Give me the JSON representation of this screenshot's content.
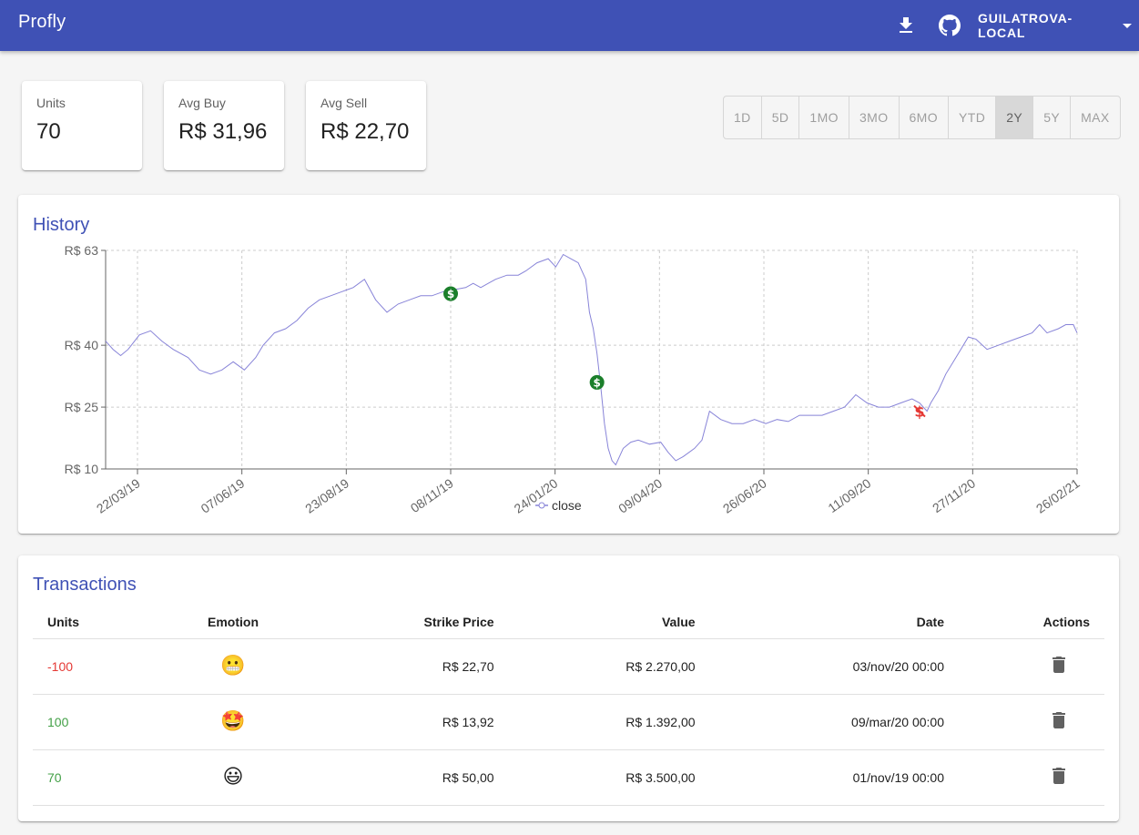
{
  "app": {
    "title": "Profly",
    "user": "GUILATROVA-LOCAL"
  },
  "icons": {
    "download": "download-icon",
    "github": "github-icon",
    "menu_caret": "chevron-down-icon",
    "buy_marker": "dollar-circle-icon",
    "sell_marker": "dollar-strike-icon",
    "delete": "trash-icon"
  },
  "stats": [
    {
      "label": "Units",
      "value": "70"
    },
    {
      "label": "Avg Buy",
      "value": "R$ 31,96"
    },
    {
      "label": "Avg Sell",
      "value": "R$ 22,70"
    }
  ],
  "ranges": {
    "options": [
      "1D",
      "5D",
      "1MO",
      "3MO",
      "6MO",
      "YTD",
      "2Y",
      "5Y",
      "MAX"
    ],
    "selected": "2Y"
  },
  "history": {
    "title": "History",
    "chart_data": {
      "type": "line",
      "y_ticks": [
        "R$ 63",
        "R$ 40",
        "R$ 25",
        "R$ 10"
      ],
      "y_tick_values": [
        63,
        40,
        25,
        10
      ],
      "ylim": [
        10,
        63
      ],
      "x_ticks": [
        "22/03/19",
        "07/06/19",
        "23/08/19",
        "08/11/19",
        "24/01/20",
        "09/04/20",
        "26/06/20",
        "11/09/20",
        "27/11/20",
        "26/02/21"
      ],
      "grid": true,
      "legend": "bottom-center",
      "series": [
        {
          "name": "close",
          "color": "#8884d8",
          "points": [
            [
              0,
              41
            ],
            [
              0.1,
              39
            ],
            [
              0.2,
              37.5
            ],
            [
              0.3,
              39
            ],
            [
              0.45,
              42.5
            ],
            [
              0.6,
              43.5
            ],
            [
              0.75,
              41
            ],
            [
              0.9,
              39
            ],
            [
              1.1,
              37
            ],
            [
              1.25,
              34
            ],
            [
              1.4,
              33
            ],
            [
              1.55,
              34
            ],
            [
              1.7,
              36
            ],
            [
              1.85,
              34
            ],
            [
              2.0,
              37
            ],
            [
              2.1,
              40
            ],
            [
              2.25,
              43
            ],
            [
              2.4,
              44
            ],
            [
              2.55,
              46
            ],
            [
              2.7,
              49
            ],
            [
              2.85,
              51
            ],
            [
              3.0,
              52
            ],
            [
              3.15,
              53
            ],
            [
              3.3,
              54
            ],
            [
              3.45,
              56
            ],
            [
              3.6,
              51
            ],
            [
              3.75,
              48
            ],
            [
              3.9,
              50
            ],
            [
              4.05,
              51
            ],
            [
              4.2,
              52
            ],
            [
              4.35,
              52
            ],
            [
              4.5,
              53
            ],
            [
              4.65,
              53.5
            ],
            [
              4.8,
              54
            ],
            [
              4.9,
              55
            ],
            [
              5.0,
              54
            ],
            [
              5.1,
              55
            ],
            [
              5.2,
              56
            ],
            [
              5.35,
              57
            ],
            [
              5.5,
              57
            ],
            [
              5.6,
              58
            ],
            [
              5.75,
              60
            ],
            [
              5.9,
              61
            ],
            [
              6.0,
              59
            ],
            [
              6.1,
              62
            ],
            [
              6.2,
              61
            ],
            [
              6.3,
              60
            ],
            [
              6.4,
              56
            ],
            [
              6.45,
              48
            ],
            [
              6.5,
              44
            ],
            [
              6.55,
              38
            ],
            [
              6.6,
              30
            ],
            [
              6.65,
              21
            ],
            [
              6.7,
              15
            ],
            [
              6.75,
              12
            ],
            [
              6.8,
              11
            ],
            [
              6.85,
              13
            ],
            [
              6.9,
              15
            ],
            [
              7.0,
              16.5
            ],
            [
              7.1,
              17
            ],
            [
              7.25,
              16
            ],
            [
              7.4,
              16.5
            ],
            [
              7.5,
              14
            ],
            [
              7.6,
              12
            ],
            [
              7.7,
              13
            ],
            [
              7.85,
              15
            ],
            [
              7.95,
              17
            ],
            [
              8.05,
              24
            ],
            [
              8.2,
              22
            ],
            [
              8.35,
              21
            ],
            [
              8.5,
              21
            ],
            [
              8.65,
              22
            ],
            [
              8.8,
              21
            ],
            [
              8.95,
              22
            ],
            [
              9.1,
              21.5
            ],
            [
              9.25,
              23
            ],
            [
              9.4,
              23
            ],
            [
              9.55,
              23
            ],
            [
              9.7,
              24
            ],
            [
              9.85,
              25
            ],
            [
              10.0,
              28
            ],
            [
              10.15,
              26
            ],
            [
              10.3,
              25
            ],
            [
              10.45,
              25
            ],
            [
              10.6,
              26
            ],
            [
              10.75,
              27
            ],
            [
              10.85,
              26
            ],
            [
              10.95,
              24
            ],
            [
              11.0,
              26
            ],
            [
              11.1,
              29
            ],
            [
              11.2,
              33
            ],
            [
              11.3,
              36
            ],
            [
              11.4,
              39
            ],
            [
              11.5,
              42
            ],
            [
              11.6,
              41.5
            ],
            [
              11.75,
              39
            ],
            [
              11.9,
              40
            ],
            [
              12.05,
              41
            ],
            [
              12.2,
              42
            ],
            [
              12.35,
              43
            ],
            [
              12.45,
              45
            ],
            [
              12.55,
              43
            ],
            [
              12.7,
              44
            ],
            [
              12.8,
              45
            ],
            [
              12.9,
              45
            ],
            [
              12.95,
              43
            ]
          ],
          "markers": [
            {
              "type": "buy",
              "x": 4.6,
              "y": 52.5
            },
            {
              "type": "buy",
              "x": 6.55,
              "y": 31
            },
            {
              "type": "sell",
              "x": 10.85,
              "y": 24
            }
          ]
        }
      ]
    }
  },
  "transactions": {
    "title": "Transactions",
    "columns": [
      "Units",
      "Emotion",
      "Strike Price",
      "Value",
      "Date",
      "Actions"
    ],
    "rows": [
      {
        "units": "-100",
        "emotion": "😬",
        "emotion_name": "grimacing-face-icon",
        "strike": "R$ 22,70",
        "value": "R$ 2.270,00",
        "date": "03/nov/20 00:00"
      },
      {
        "units": "100",
        "emotion": "🤩",
        "emotion_name": "star-struck-icon",
        "strike": "R$ 13,92",
        "value": "R$ 1.392,00",
        "date": "09/mar/20 00:00"
      },
      {
        "units": "70",
        "emotion": "😃",
        "emotion_name": "grinning-face-icon",
        "strike": "R$ 50,00",
        "value": "R$ 3.500,00",
        "date": "01/nov/19 00:00"
      }
    ]
  }
}
